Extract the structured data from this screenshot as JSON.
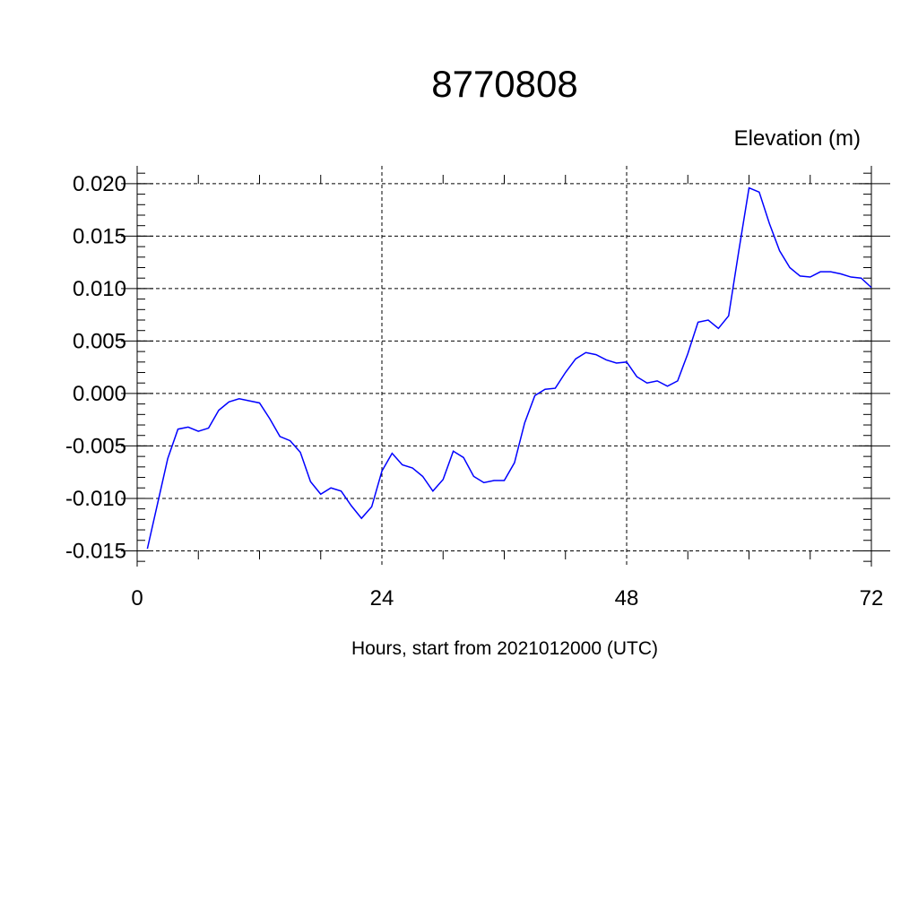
{
  "chart_data": {
    "type": "line",
    "title": "8770808",
    "subtitle": "Elevation (m)",
    "x_label": "Hours, start from 2021012000 (UTC)",
    "x": [
      1,
      2,
      3,
      4,
      5,
      6,
      7,
      8,
      9,
      10,
      11,
      12,
      13,
      14,
      15,
      16,
      17,
      18,
      19,
      20,
      21,
      22,
      23,
      24,
      25,
      26,
      27,
      28,
      29,
      30,
      31,
      32,
      33,
      34,
      35,
      36,
      37,
      38,
      39,
      40,
      41,
      42,
      43,
      44,
      45,
      46,
      47,
      48,
      49,
      50,
      51,
      52,
      53,
      54,
      55,
      56,
      57,
      58,
      59,
      60,
      61,
      62,
      63,
      64,
      65,
      66,
      67,
      68,
      69,
      70,
      71,
      72
    ],
    "series": [
      {
        "name": "Elevation",
        "color": "#0000ff",
        "values": [
          -0.0148,
          -0.0105,
          -0.0062,
          -0.0034,
          -0.0032,
          -0.0036,
          -0.0033,
          -0.0016,
          -0.0008,
          -0.0005,
          -0.0007,
          -0.0009,
          -0.0024,
          -0.0041,
          -0.0045,
          -0.0056,
          -0.0084,
          -0.0096,
          -0.009,
          -0.0093,
          -0.0107,
          -0.0119,
          -0.0108,
          -0.0074,
          -0.0057,
          -0.0068,
          -0.0071,
          -0.0079,
          -0.0093,
          -0.0082,
          -0.0055,
          -0.0061,
          -0.0079,
          -0.0085,
          -0.0083,
          -0.0083,
          -0.0066,
          -0.0028,
          -0.0002,
          0.0004,
          0.0005,
          0.002,
          0.0033,
          0.0039,
          0.0037,
          0.0032,
          0.0029,
          0.003,
          0.0016,
          0.001,
          0.0012,
          0.0007,
          0.0012,
          0.0038,
          0.0068,
          0.007,
          0.0062,
          0.0074,
          0.0136,
          0.0196,
          0.0192,
          0.0162,
          0.0136,
          0.012,
          0.0112,
          0.0111,
          0.0116,
          0.0116,
          0.0114,
          0.0111,
          0.011,
          0.0101
        ]
      }
    ],
    "xlim": [
      0,
      72
    ],
    "xticks": [
      0,
      24,
      48,
      72
    ],
    "ylim": [
      -0.0165,
      0.0217
    ],
    "yticks": [
      {
        "value": -0.015,
        "label": "-0.015"
      },
      {
        "value": -0.01,
        "label": "-0.010"
      },
      {
        "value": -0.005,
        "label": "-0.005"
      },
      {
        "value": 0,
        "label": "0.000"
      },
      {
        "value": 0.005,
        "label": "0.005"
      },
      {
        "value": 0.01,
        "label": "0.010"
      },
      {
        "value": 0.015,
        "label": "0.015"
      },
      {
        "value": 0.02,
        "label": "0.020"
      }
    ],
    "grid": true
  }
}
